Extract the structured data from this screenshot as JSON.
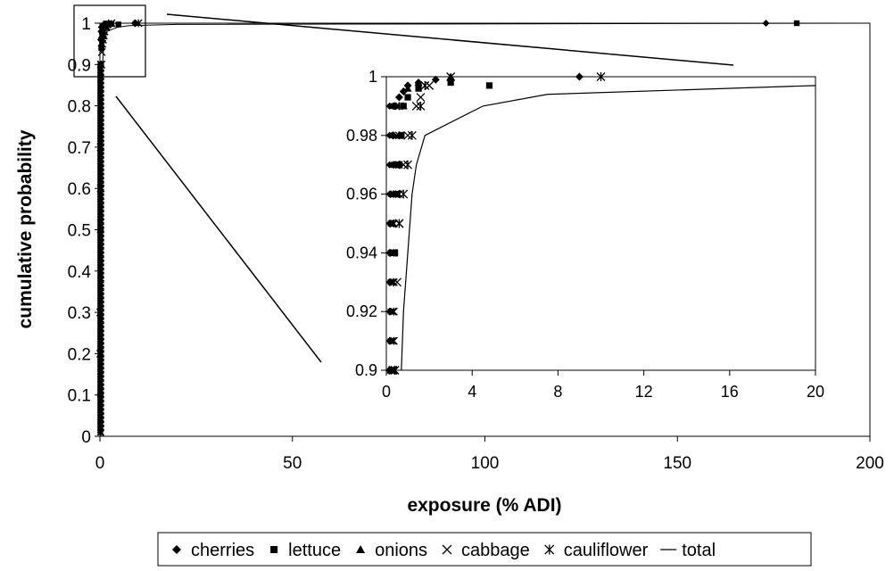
{
  "chart_data": {
    "type": "scatter",
    "title": "",
    "xlabel": "exposure (% ADI)",
    "ylabel": "cumulative probability",
    "xlim": [
      0,
      200
    ],
    "ylim": [
      0,
      1
    ],
    "xticks": [
      0,
      50,
      100,
      150,
      200
    ],
    "yticks": [
      0,
      0.1,
      0.2,
      0.3,
      0.4,
      0.5,
      0.6,
      0.7,
      0.8,
      0.9,
      1
    ],
    "grid": false,
    "legend_position": "bottom",
    "series": [
      {
        "name": "cherries",
        "marker": "diamond",
        "x": [
          0.05,
          0.1,
          0.15,
          0.2,
          0.3,
          0.4,
          0.6,
          0.8,
          1.0,
          1.5,
          2.3,
          9.0,
          173
        ],
        "y": [
          0.1,
          0.5,
          0.9,
          0.96,
          0.98,
          0.99,
          0.993,
          0.995,
          0.997,
          0.998,
          0.999,
          1.0,
          1.0
        ]
      },
      {
        "name": "lettuce",
        "marker": "square",
        "x": [
          0.1,
          0.2,
          0.3,
          0.4,
          0.5,
          0.6,
          0.7,
          0.8,
          1.0,
          1.5,
          3.0,
          4.8,
          181
        ],
        "y": [
          0.1,
          0.5,
          0.9,
          0.94,
          0.96,
          0.97,
          0.98,
          0.99,
          0.993,
          0.996,
          0.998,
          0.997,
          1.0
        ]
      },
      {
        "name": "onions",
        "marker": "triangle",
        "x": [
          0.1,
          0.2,
          0.3,
          0.4,
          0.6,
          0.8,
          1.0,
          1.5,
          3.0
        ],
        "y": [
          0.5,
          0.9,
          0.95,
          0.97,
          0.98,
          0.99,
          0.996,
          0.998,
          1.0
        ]
      },
      {
        "name": "cabbage",
        "marker": "x",
        "x": [
          0.1,
          0.2,
          0.3,
          0.5,
          0.6,
          0.8,
          1.0,
          1.4,
          1.6,
          2.0,
          3.0
        ],
        "y": [
          0.3,
          0.7,
          0.9,
          0.93,
          0.95,
          0.97,
          0.98,
          0.99,
          0.993,
          0.997,
          1.0
        ]
      },
      {
        "name": "cauliflower",
        "marker": "asterisk",
        "x": [
          0.1,
          0.2,
          0.4,
          0.6,
          0.8,
          1.0,
          1.2,
          1.6,
          1.8,
          10.0
        ],
        "y": [
          0.2,
          0.6,
          0.9,
          0.95,
          0.96,
          0.97,
          0.98,
          0.99,
          0.997,
          1.0
        ]
      },
      {
        "name": "total",
        "marker": "line",
        "x": [
          0.7,
          0.8,
          1.0,
          1.2,
          1.4,
          1.8,
          4.5,
          7.5,
          20
        ],
        "y": [
          0.9,
          0.92,
          0.94,
          0.96,
          0.97,
          0.98,
          0.99,
          0.994,
          0.997
        ]
      }
    ],
    "inset": {
      "xlim": [
        0,
        20
      ],
      "ylim": [
        0.9,
        1
      ],
      "xticks": [
        0,
        4,
        8,
        12,
        16,
        20
      ],
      "yticks": [
        0.9,
        0.92,
        0.94,
        0.96,
        0.98,
        1
      ]
    }
  }
}
